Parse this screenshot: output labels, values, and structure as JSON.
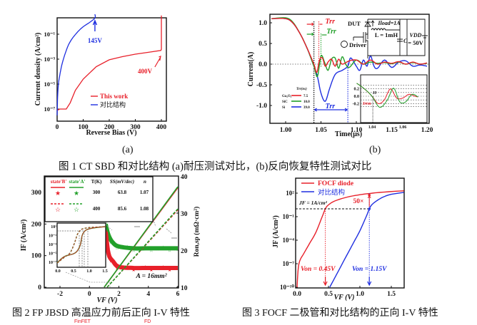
{
  "figure1": {
    "caption": "图 1 CT SBD 和对比结构 (a)耐压测试对比，(b)反向恢复特性测试对比",
    "label_a": "(a)",
    "label_b": "(b)"
  },
  "figure2_caption": "图 2 FP JBSD 高温应力前后正向 I-V 特性",
  "figure3_caption": "图 3 FOCF 二极管和对比结构的正向 I-V 特性",
  "footer_fragments": [
    "FinFET",
    "FD"
  ],
  "chart_data": [
    {
      "id": "fig1a",
      "type": "line",
      "title": "",
      "xlabel": "Reverse Bias (V)",
      "ylabel": "Current density (A/cm²)",
      "xlim": [
        0,
        420
      ],
      "ylim_log10": [
        -8,
        1
      ],
      "xticks": [
        0,
        100,
        200,
        300,
        400
      ],
      "yticks_log10": [
        -7,
        -5,
        -3,
        -1
      ],
      "ytick_labels": [
        "10⁻⁷",
        "10⁻⁵",
        "10⁻³",
        "10⁻¹"
      ],
      "legend": [
        "This work",
        "对比结构"
      ],
      "legend_position": "lower-center",
      "annotations": [
        "145V",
        "400V"
      ],
      "series": [
        {
          "name": "This work",
          "color": "#e8202a",
          "x": [
            0,
            10,
            35,
            50,
            70,
            100,
            150,
            200,
            250,
            300,
            350,
            398,
            400,
            400
          ],
          "log10y": [
            -7.1,
            -7.0,
            -7.0,
            -6.5,
            -5.5,
            -4.6,
            -3.6,
            -3.05,
            -2.8,
            -2.6,
            -2.45,
            -2.3,
            -2.2,
            0.5
          ]
        },
        {
          "name": "对比结构",
          "color": "#1f2fe0",
          "x": [
            0,
            2,
            5,
            10,
            20,
            35,
            50,
            75,
            100,
            125,
            145,
            145
          ],
          "log10y": [
            -7.5,
            -6.0,
            -5.0,
            -4.3,
            -3.3,
            -2.3,
            -1.6,
            -0.9,
            -0.4,
            -0.05,
            0.3,
            0.6
          ]
        }
      ]
    },
    {
      "id": "fig1b",
      "type": "line",
      "xlabel": "Time(μs)",
      "ylabel": "Current(A)",
      "xlim": [
        0.98,
        1.2
      ],
      "ylim": [
        -1.4,
        1.2
      ],
      "xticks": [
        1.0,
        1.05,
        1.1,
        1.15,
        1.2
      ],
      "yticks": [
        1.0,
        0.5,
        0.0,
        -0.5,
        -1.0
      ],
      "legend_title": "Trr(ns)",
      "legend_position": "lower-left",
      "legend": [
        {
          "name": "Ga₂O₃",
          "value": "7.5",
          "color": "#e8202a"
        },
        {
          "name": "SiC",
          "value": "10.0",
          "color": "#22a02a"
        },
        {
          "name": "Si",
          "value": "39.0",
          "color": "#1f2fe0"
        }
      ],
      "annotations": [
        "Trr",
        "Trr",
        "Trr"
      ],
      "circuit": {
        "dut": "DUT",
        "iload": "Iload=1A",
        "inductor": "L = 1mH",
        "cap": "C",
        "vdd": "VDD",
        "vdd_value": "= 50V",
        "driver": "Driver"
      },
      "series": [
        {
          "name": "Ga₂O₃",
          "color": "#e8202a",
          "x": [
            0.98,
            1.0,
            1.01,
            1.02,
            1.03,
            1.04,
            1.044,
            1.048,
            1.052,
            1.056,
            1.06,
            1.065,
            1.07,
            1.075,
            1.08,
            1.09,
            1.1,
            1.11,
            1.12,
            1.13,
            1.14,
            1.15,
            1.16,
            1.17,
            1.18,
            1.19,
            1.2
          ],
          "y": [
            1.1,
            1.1,
            1.0,
            0.75,
            0.4,
            0.0,
            -0.2,
            0.1,
            0.15,
            -0.05,
            0.05,
            0.12,
            -0.05,
            0.12,
            0.0,
            0.08,
            0.1,
            0.0,
            0.1,
            0.0,
            0.05,
            0.02,
            0.06,
            0.0,
            0.05,
            0.0,
            0.03
          ]
        },
        {
          "name": "SiC",
          "color": "#22a02a",
          "x": [
            0.98,
            1.0,
            1.01,
            1.02,
            1.03,
            1.04,
            1.045,
            1.05,
            1.055,
            1.06,
            1.065,
            1.07,
            1.075,
            1.08,
            1.085,
            1.09,
            1.1,
            1.11,
            1.12,
            1.13,
            1.14,
            1.15,
            1.16,
            1.17,
            1.18,
            1.19,
            1.2
          ],
          "y": [
            1.1,
            1.12,
            1.02,
            0.75,
            0.4,
            -0.05,
            -0.3,
            0.2,
            0.05,
            -0.15,
            0.12,
            0.15,
            -0.1,
            0.18,
            0.0,
            -0.08,
            0.1,
            0.0,
            0.05,
            0.02,
            0.04,
            0.01,
            0.05,
            0.0,
            0.04,
            0.0,
            0.02
          ]
        },
        {
          "name": "Si",
          "color": "#1f2fe0",
          "x": [
            0.98,
            1.0,
            1.01,
            1.02,
            1.03,
            1.04,
            1.045,
            1.05,
            1.056,
            1.062,
            1.07,
            1.08,
            1.088,
            1.092,
            1.1,
            1.105,
            1.11,
            1.115,
            1.12,
            1.125,
            1.13,
            1.14,
            1.15,
            1.16,
            1.17,
            1.18,
            1.19,
            1.2
          ],
          "y": [
            1.1,
            1.1,
            1.0,
            0.75,
            0.4,
            -0.05,
            -0.3,
            -0.7,
            -0.9,
            -0.6,
            -0.25,
            -0.15,
            -0.05,
            0.15,
            -0.05,
            -0.15,
            0.1,
            -0.05,
            0.2,
            -0.05,
            -0.1,
            0.1,
            -0.08,
            0.05,
            0.08,
            -0.05,
            -0.02,
            -0.05
          ]
        }
      ],
      "inset": {
        "xlim": [
          1.03,
          1.07
        ],
        "ylim": [
          -0.3,
          0.35
        ],
        "xticks": [
          1.04,
          1.06
        ],
        "yticks": [
          0.2,
          0.0,
          -0.2
        ],
        "labels": [
          "I0",
          "Irrm"
        ],
        "series": [
          {
            "name": "Ga₂O₃",
            "color": "#e8202a",
            "x": [
              1.03,
              1.035,
              1.04,
              1.044,
              1.048,
              1.052,
              1.056,
              1.06,
              1.064,
              1.068,
              1.07
            ],
            "y": [
              0.35,
              0.2,
              0.0,
              -0.2,
              -0.1,
              0.2,
              -0.05,
              -0.05,
              0.05,
              0.0,
              -0.02
            ]
          },
          {
            "name": "SiC",
            "color": "#22a02a",
            "x": [
              1.03,
              1.035,
              1.04,
              1.045,
              1.05,
              1.054,
              1.058,
              1.062,
              1.066,
              1.07
            ],
            "y": [
              0.35,
              0.2,
              0.0,
              -0.3,
              -0.1,
              0.22,
              -0.15,
              -0.15,
              0.05,
              -0.02
            ]
          }
        ]
      }
    },
    {
      "id": "fig2",
      "type": "scatter",
      "xlabel": "VF (V)",
      "ylabel": "IF (A/cm²)",
      "ylabel_right": "Ron,sp (mΩ·cm²)",
      "xlim": [
        -3.2,
        6
      ],
      "ylim": [
        0,
        340
      ],
      "ylim_right": [
        10,
        40
      ],
      "xticks": [
        -2,
        0,
        2,
        4,
        6
      ],
      "yticks": [
        0,
        100,
        200,
        300
      ],
      "yticks_right": [
        10,
        20,
        30,
        40
      ],
      "annotation": "A = 16mm²",
      "legend_table": {
        "headers": [
          "state'B'",
          "state'A'",
          "T(K)",
          "SS(mV/dec)",
          "n"
        ],
        "rows": [
          {
            "T": "300",
            "SS": "63.8",
            "n": "1.07",
            "line": "solid",
            "marker": "filled-star"
          },
          {
            "T": "400",
            "SS": "85.6",
            "n": "1.08",
            "line": "dashed",
            "marker": "open-star"
          }
        ]
      },
      "series": [
        {
          "name": "state'B' 300K IV",
          "color": "#e8202a",
          "dash": false,
          "x": [
            1.0,
            6.0
          ],
          "y": [
            0,
            315
          ]
        },
        {
          "name": "state'A' 300K IV",
          "color": "#22a02a",
          "dash": false,
          "x": [
            1.0,
            6.0
          ],
          "y": [
            0,
            318
          ]
        },
        {
          "name": "state'B' 400K IV",
          "color": "#e8202a",
          "dash": true,
          "x": [
            1.2,
            6.0
          ],
          "y": [
            0,
            245
          ]
        },
        {
          "name": "state'A' 400K IV",
          "color": "#22a02a",
          "dash": true,
          "x": [
            1.2,
            6.0
          ],
          "y": [
            0,
            248
          ]
        },
        {
          "name": "Ron 300K",
          "color": "#e8202a",
          "axis": "right",
          "x": [
            1.1,
            1.3,
            1.6,
            2.0,
            3,
            4,
            5,
            6
          ],
          "y": [
            25,
            19,
            17,
            15.5,
            15.2,
            15.2,
            15.2,
            15.2
          ]
        },
        {
          "name": "Ron 400K",
          "color": "#22a02a",
          "axis": "right",
          "x": [
            1.1,
            1.3,
            1.6,
            2.0,
            3,
            4,
            5,
            6
          ],
          "y": [
            27,
            24,
            22,
            21,
            20.5,
            20.5,
            20.5,
            20.5
          ]
        }
      ],
      "inset": {
        "xlim": [
          0,
          1.5
        ],
        "ylim_log10": [
          -7,
          1.5
        ],
        "xticks": [
          "0.0",
          "0.5",
          "1.0",
          "1.5"
        ],
        "yticks": [
          "10¹",
          "10⁻¹",
          "10⁻³",
          "10⁻⁵",
          "10⁻⁷"
        ]
      }
    },
    {
      "id": "fig3",
      "type": "line",
      "xlabel": "VF (V)",
      "ylabel": "JF (A/cm²)",
      "xlim": [
        -0.02,
        1.7
      ],
      "ylim_log10": [
        -10,
        4
      ],
      "xticks": [
        "0.0",
        "0.5",
        "1.0",
        "1.5"
      ],
      "yticks": [
        "10²",
        "10⁻¹",
        "10⁻⁴",
        "10⁻⁷",
        "10⁻¹⁰"
      ],
      "legend": [
        "FOCF diode",
        "对比结构"
      ],
      "legend_position": "top-left",
      "annotations": [
        "JF = 1A/cm²",
        "50×",
        "Von = 0.45V",
        "Von = 1.15V"
      ],
      "series": [
        {
          "name": "FOCF diode",
          "color": "#e8202a",
          "x": [
            0,
            0.02,
            0.05,
            0.1,
            0.2,
            0.3,
            0.4,
            0.45,
            0.5,
            0.6,
            0.8,
            1.0,
            1.2,
            1.4,
            1.7
          ],
          "log10y": [
            -10,
            -7.5,
            -6.5,
            -5.8,
            -4.4,
            -3.0,
            -1.0,
            0.0,
            0.5,
            1.0,
            1.5,
            1.8,
            2.0,
            2.15,
            2.3
          ]
        },
        {
          "name": "对比结构",
          "color": "#1f2fe0",
          "x": [
            0.52,
            0.7,
            0.9,
            1.0,
            1.1,
            1.15,
            1.2,
            1.3,
            1.4,
            1.5,
            1.7
          ],
          "log10y": [
            -10,
            -7.3,
            -4.3,
            -2.8,
            -1.0,
            0.0,
            0.6,
            1.2,
            1.6,
            1.85,
            2.1
          ]
        }
      ]
    }
  ]
}
